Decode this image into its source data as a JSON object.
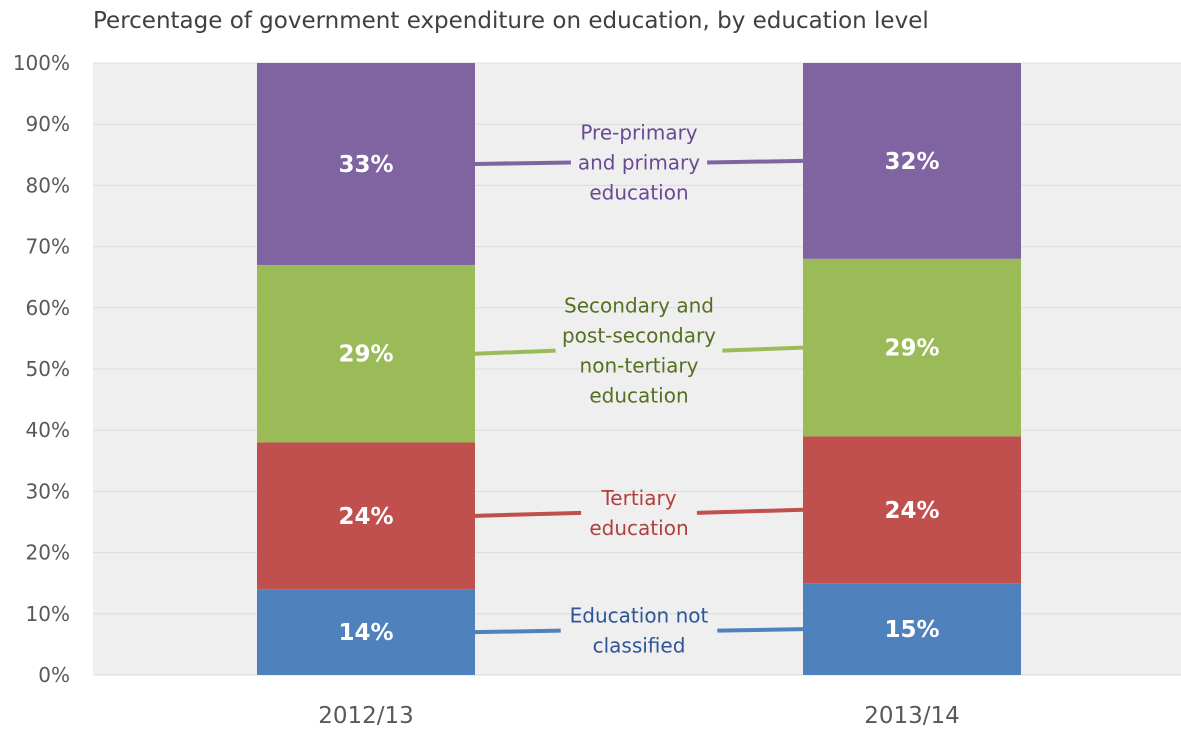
{
  "chart_data": {
    "type": "bar",
    "stacked": true,
    "orientation": "vertical",
    "title": "Percentage of government expenditure on education, by education level",
    "xlabel": "",
    "ylabel": "",
    "categories": [
      "2012/13",
      "2013/14"
    ],
    "ylim": [
      0,
      100
    ],
    "y_ticks": [
      "0%",
      "10%",
      "20%",
      "30%",
      "40%",
      "50%",
      "60%",
      "70%",
      "80%",
      "90%",
      "100%"
    ],
    "grid": true,
    "legend": "inline labels between bars",
    "series": [
      {
        "name": "Education not classified",
        "label_lines": [
          "Education not",
          "classified"
        ],
        "values": [
          14,
          15
        ],
        "value_labels": [
          "14%",
          "15%"
        ],
        "color": "#4f81bd",
        "text_color": "#2e5597"
      },
      {
        "name": "Tertiary education",
        "label_lines": [
          "Tertiary",
          "education"
        ],
        "values": [
          24,
          24
        ],
        "value_labels": [
          "24%",
          "24%"
        ],
        "color": "#c0504d",
        "text_color": "#b0403d"
      },
      {
        "name": "Secondary and post-secondary non-tertiary education",
        "label_lines": [
          "Secondary and",
          "post-secondary",
          "non-tertiary",
          "education"
        ],
        "values": [
          29,
          29
        ],
        "value_labels": [
          "29%",
          "29%"
        ],
        "color": "#9bbb59",
        "text_color": "#55701f"
      },
      {
        "name": "Pre-primary and primary education",
        "label_lines": [
          "Pre-primary",
          "and primary",
          "education"
        ],
        "values": [
          33,
          32
        ],
        "value_labels": [
          "33%",
          "32%"
        ],
        "color": "#8064a2",
        "text_color": "#6a4a92"
      }
    ]
  },
  "colors": {
    "plot_background": "#efefef",
    "gridline": "#dcdcdc",
    "axis_text": "#595959",
    "value_label": "#ffffff"
  }
}
